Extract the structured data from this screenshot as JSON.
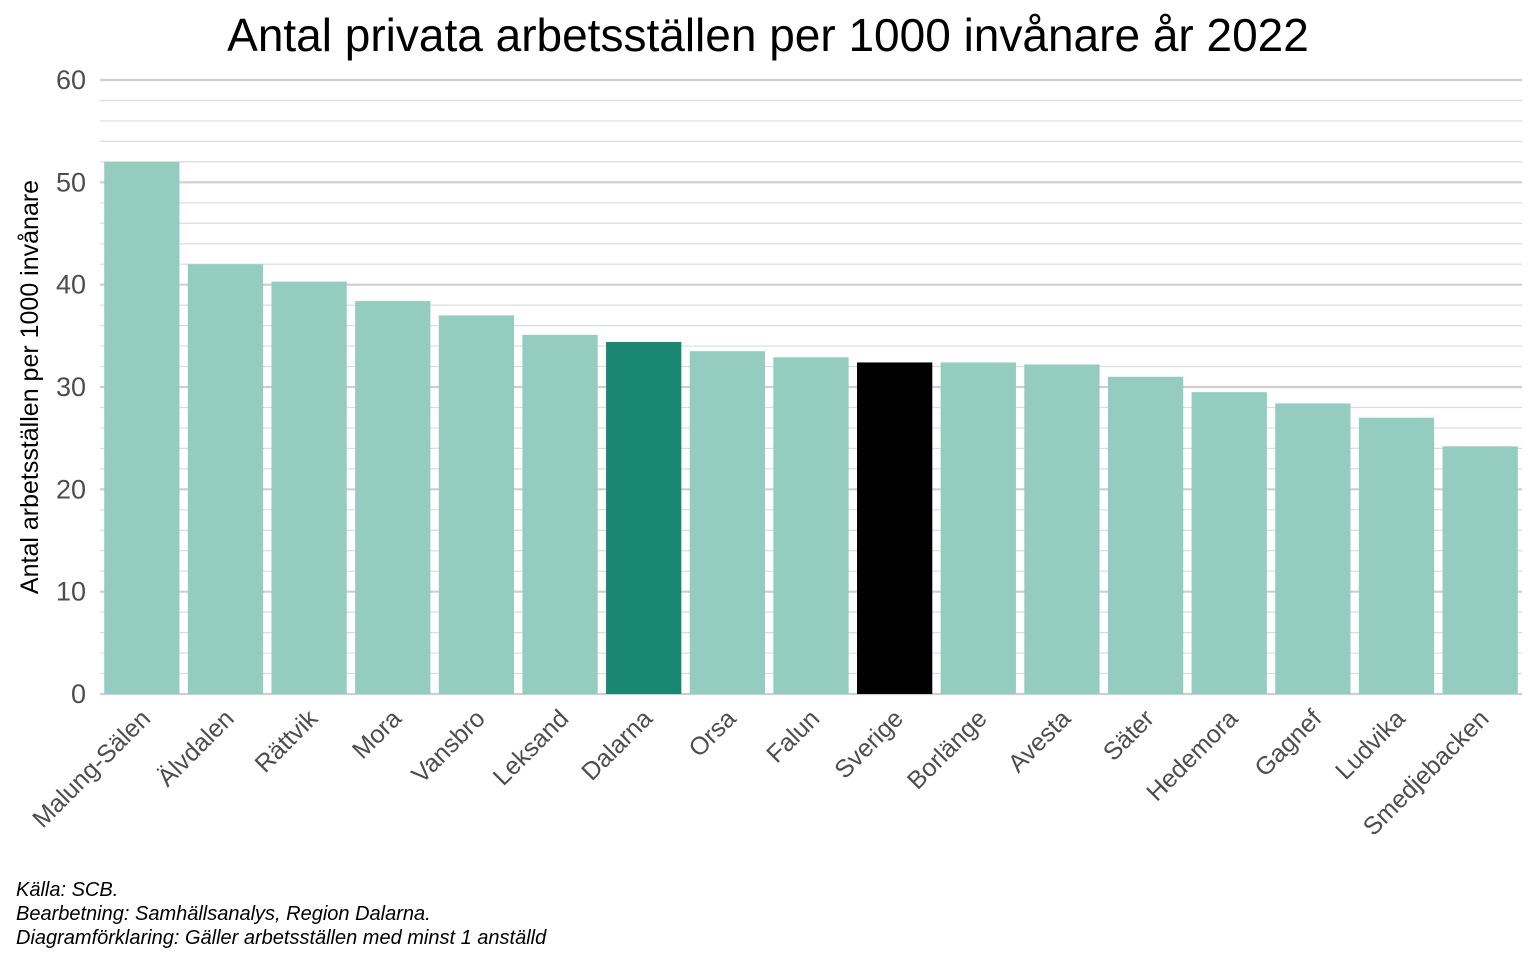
{
  "chart_data": {
    "type": "bar",
    "title": "Antal privata arbetsställen per 1000 invånare år 2022",
    "xlabel": "",
    "ylabel": "Antal arbetsställen per 1000 invånare",
    "ylim": [
      0,
      60
    ],
    "yticks": [
      0,
      10,
      20,
      30,
      40,
      50,
      60
    ],
    "grid": true,
    "categories": [
      "Malung-Sälen",
      "Älvdalen",
      "Rättvik",
      "Mora",
      "Vansbro",
      "Leksand",
      "Dalarna",
      "Orsa",
      "Falun",
      "Sverige",
      "Borlänge",
      "Avesta",
      "Säter",
      "Hedemora",
      "Gagnef",
      "Ludvika",
      "Smedjebacken"
    ],
    "values": [
      52.0,
      42.0,
      40.3,
      38.4,
      37.0,
      35.1,
      34.4,
      33.5,
      32.9,
      32.4,
      32.4,
      32.2,
      31.0,
      29.5,
      28.4,
      27.0,
      24.2
    ],
    "colors": [
      "#94cdbf",
      "#94cdbf",
      "#94cdbf",
      "#94cdbf",
      "#94cdbf",
      "#94cdbf",
      "#1a8773",
      "#94cdbf",
      "#94cdbf",
      "#000000",
      "#94cdbf",
      "#94cdbf",
      "#94cdbf",
      "#94cdbf",
      "#94cdbf",
      "#94cdbf",
      "#94cdbf"
    ]
  },
  "caption": {
    "source": "Källa: SCB.",
    "processing": "Bearbetning: Samhällsanalys, Region Dalarna.",
    "note": "Diagramförklaring: Gäller arbetsställen med minst 1 anställd"
  }
}
